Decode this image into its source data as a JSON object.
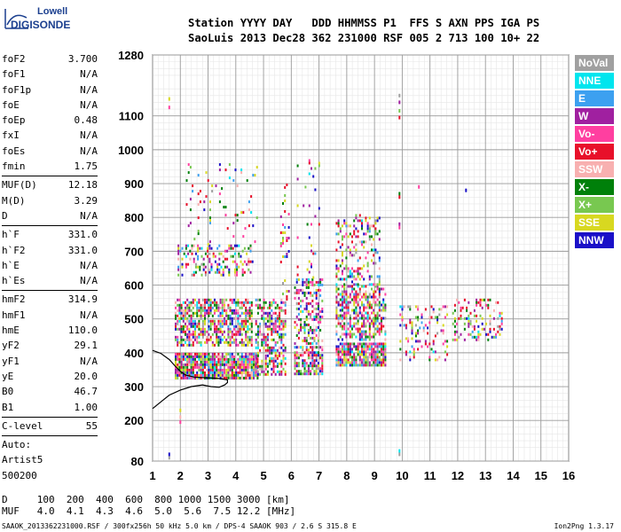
{
  "logo": {
    "top": "Lowell",
    "main": "DIGISONDE"
  },
  "header": {
    "line1": "Station YYYY DAY   DDD HHMMSS P1  FFS S AXN PPS IGA PS",
    "line2": "SaoLuis 2013 Dec28 362 231000 RSF 005 2 713 100 10+ 22"
  },
  "params": {
    "group1": [
      {
        "name": "foF2",
        "value": "3.700"
      },
      {
        "name": "foF1",
        "value": "N/A"
      },
      {
        "name": "foF1p",
        "value": "N/A"
      },
      {
        "name": "foE",
        "value": "N/A"
      },
      {
        "name": "foEp",
        "value": "0.48"
      },
      {
        "name": "fxI",
        "value": "N/A"
      },
      {
        "name": "foEs",
        "value": "N/A"
      },
      {
        "name": "fmin",
        "value": "1.75"
      }
    ],
    "group2": [
      {
        "name": "MUF(D)",
        "value": "12.18"
      },
      {
        "name": "M(D)",
        "value": "3.29"
      },
      {
        "name": "D",
        "value": "N/A"
      }
    ],
    "group3": [
      {
        "name": "h`F",
        "value": "331.0"
      },
      {
        "name": "h`F2",
        "value": "331.0"
      },
      {
        "name": "h`E",
        "value": "N/A"
      },
      {
        "name": "h`Es",
        "value": "N/A"
      }
    ],
    "group4": [
      {
        "name": "hmF2",
        "value": "314.9"
      },
      {
        "name": "hmF1",
        "value": "N/A"
      },
      {
        "name": "hmE",
        "value": "110.0"
      },
      {
        "name": "yF2",
        "value": "29.1"
      },
      {
        "name": "yF1",
        "value": "N/A"
      },
      {
        "name": "yE",
        "value": "20.0"
      },
      {
        "name": "B0",
        "value": "46.7"
      },
      {
        "name": "B1",
        "value": "1.00"
      }
    ],
    "group5": [
      {
        "name": "C-level",
        "value": "55"
      }
    ],
    "auto": [
      "Auto:",
      "Artist5",
      "500200"
    ]
  },
  "legend": [
    {
      "label": "NoVal",
      "color": "#a0a0a0"
    },
    {
      "label": "NNE",
      "color": "#00e5ee"
    },
    {
      "label": "E",
      "color": "#3ca0f0"
    },
    {
      "label": "W",
      "color": "#a020a0"
    },
    {
      "label": "Vo-",
      "color": "#ff3fa0"
    },
    {
      "label": "Vo+",
      "color": "#e8102a"
    },
    {
      "label": "SSW",
      "color": "#f8b0b0"
    },
    {
      "label": "X-",
      "color": "#00800a"
    },
    {
      "label": "X+",
      "color": "#78c850"
    },
    {
      "label": "SSE",
      "color": "#d8d820"
    },
    {
      "label": "NNW",
      "color": "#1a10c8"
    }
  ],
  "dtable": {
    "line1": "D     100  200  400  600  800 1000 1500 3000 [km]",
    "line2": "MUF   4.0  4.1  4.3  4.6  5.0  5.6  7.5 12.2 [MHz]"
  },
  "footer": {
    "left": "SAAOK_2013362231000.RSF / 300fx256h 50 kHz 5.0 km / DPS-4 SAAOK 903 / 2.6 S 315.8 E",
    "right": "Ion2Png 1.3.17"
  },
  "chart_data": {
    "type": "scatter",
    "title": "",
    "xlabel": "",
    "ylabel": "",
    "xlim": [
      1,
      16
    ],
    "y_ticks": [
      80,
      200,
      300,
      400,
      500,
      600,
      700,
      800,
      900,
      1000,
      1100,
      1280
    ],
    "x_ticks": [
      1,
      2,
      3,
      4,
      5,
      6,
      7,
      8,
      9,
      10,
      11,
      12,
      13,
      14,
      15,
      16
    ],
    "ylim": [
      80,
      1280
    ],
    "trace_profile": [
      [
        1.0,
        235
      ],
      [
        1.3,
        255
      ],
      [
        1.6,
        275
      ],
      [
        2.0,
        290
      ],
      [
        2.4,
        300
      ],
      [
        2.8,
        305
      ],
      [
        3.1,
        300
      ],
      [
        3.4,
        298
      ],
      [
        3.6,
        305
      ],
      [
        3.7,
        312
      ],
      [
        3.7,
        320
      ],
      [
        3.4,
        324
      ],
      [
        3.0,
        326
      ],
      [
        2.5,
        328
      ],
      [
        2.2,
        334
      ],
      [
        2.0,
        345
      ],
      [
        1.8,
        362
      ],
      [
        1.6,
        380
      ],
      [
        1.3,
        398
      ],
      [
        1.0,
        407
      ]
    ],
    "echo_clusters": [
      {
        "f": [
          1.8,
          4.8
        ],
        "h": [
          325,
          400
        ],
        "density": 0.9
      },
      {
        "f": [
          1.8,
          4.6
        ],
        "h": [
          420,
          560
        ],
        "density": 0.65
      },
      {
        "f": [
          1.9,
          4.6
        ],
        "h": [
          630,
          720
        ],
        "density": 0.35
      },
      {
        "f": [
          2.2,
          4.8
        ],
        "h": [
          720,
          960
        ],
        "density": 0.06
      },
      {
        "f": [
          4.7,
          5.8
        ],
        "h": [
          335,
          560
        ],
        "density": 0.55
      },
      {
        "f": [
          5.6,
          5.9
        ],
        "h": [
          560,
          900
        ],
        "density": 0.12
      },
      {
        "f": [
          6.1,
          7.1
        ],
        "h": [
          340,
          420
        ],
        "density": 0.7
      },
      {
        "f": [
          6.1,
          7.1
        ],
        "h": [
          430,
          620
        ],
        "density": 0.4
      },
      {
        "f": [
          6.2,
          7.0
        ],
        "h": [
          620,
          980
        ],
        "density": 0.05
      },
      {
        "f": [
          7.6,
          9.4
        ],
        "h": [
          360,
          430
        ],
        "density": 0.85
      },
      {
        "f": [
          7.6,
          9.4
        ],
        "h": [
          440,
          600
        ],
        "density": 0.55
      },
      {
        "f": [
          7.6,
          9.2
        ],
        "h": [
          600,
          810
        ],
        "density": 0.3
      },
      {
        "f": [
          9.9,
          11.6
        ],
        "h": [
          380,
          540
        ],
        "density": 0.18
      },
      {
        "f": [
          11.8,
          13.6
        ],
        "h": [
          440,
          560
        ],
        "density": 0.25
      }
    ],
    "isolated_points": [
      {
        "f": 1.6,
        "h": 1150
      },
      {
        "f": 1.6,
        "h": 1125
      },
      {
        "f": 9.9,
        "h": 1160
      },
      {
        "f": 9.9,
        "h": 1140
      },
      {
        "f": 9.9,
        "h": 1115
      },
      {
        "f": 9.9,
        "h": 1095
      },
      {
        "f": 9.9,
        "h": 870
      },
      {
        "f": 9.9,
        "h": 860
      },
      {
        "f": 9.9,
        "h": 780
      },
      {
        "f": 9.9,
        "h": 770
      },
      {
        "f": 9.9,
        "h": 110
      },
      {
        "f": 9.9,
        "h": 100
      },
      {
        "f": 10.6,
        "h": 890
      },
      {
        "f": 12.3,
        "h": 880
      },
      {
        "f": 1.6,
        "h": 90
      },
      {
        "f": 1.6,
        "h": 100
      },
      {
        "f": 2.0,
        "h": 230
      },
      {
        "f": 2.0,
        "h": 210
      },
      {
        "f": 2.0,
        "h": 195
      }
    ]
  }
}
